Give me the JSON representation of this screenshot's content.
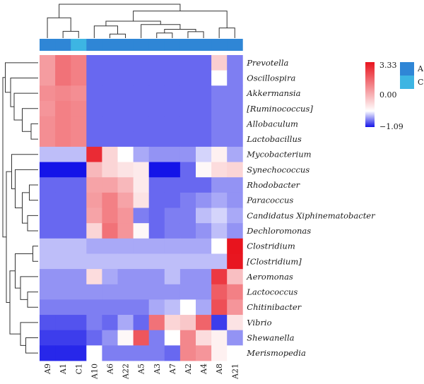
{
  "chart_data": {
    "type": "heatmap",
    "title": "",
    "columns": [
      "A9",
      "A1",
      "C1",
      "A10",
      "A6",
      "A22",
      "A5",
      "A3",
      "A7",
      "A2",
      "A4",
      "A8",
      "A21"
    ],
    "rows": [
      "Prevotella",
      "Oscillospira",
      "Akkermansia",
      "[Ruminococcus]",
      "Allobaculum",
      "Lactobacillus",
      "Mycobacterium",
      "Synechococcus",
      "Rhodobacter",
      "Paracoccus",
      "Candidatus Xiphinematobacter",
      "Dechloromonas",
      "Clostridium",
      "[Clostridium]",
      "Aeromonas",
      "Lactococcus",
      "Chitinibacter",
      "Vibrio",
      "Shewanella",
      "Merismopedia"
    ],
    "groups": [
      "A",
      "A",
      "C",
      "A",
      "A",
      "A",
      "A",
      "A",
      "A",
      "A",
      "A",
      "A",
      "A"
    ],
    "values": [
      [
        1.4,
        2.0,
        1.8,
        -0.7,
        -0.7,
        -0.7,
        -0.7,
        -0.7,
        -0.7,
        -0.7,
        -0.7,
        0.7,
        -0.6
      ],
      [
        1.4,
        2.0,
        1.8,
        -0.7,
        -0.7,
        -0.7,
        -0.7,
        -0.7,
        -0.7,
        -0.7,
        -0.7,
        0.0,
        -0.6
      ],
      [
        1.6,
        1.7,
        1.6,
        -0.7,
        -0.7,
        -0.7,
        -0.7,
        -0.7,
        -0.7,
        -0.7,
        -0.7,
        -0.6,
        -0.6
      ],
      [
        1.5,
        1.8,
        1.7,
        -0.7,
        -0.7,
        -0.7,
        -0.7,
        -0.7,
        -0.7,
        -0.7,
        -0.7,
        -0.6,
        -0.6
      ],
      [
        1.6,
        1.8,
        1.7,
        -0.7,
        -0.7,
        -0.7,
        -0.7,
        -0.7,
        -0.7,
        -0.7,
        -0.7,
        -0.6,
        -0.6
      ],
      [
        1.6,
        1.8,
        1.7,
        -0.7,
        -0.7,
        -0.7,
        -0.7,
        -0.7,
        -0.7,
        -0.7,
        -0.7,
        -0.6,
        -0.6
      ],
      [
        -0.3,
        -0.3,
        -0.3,
        3.0,
        0.6,
        0.0,
        -0.4,
        -0.5,
        -0.5,
        -0.5,
        -0.2,
        0.2,
        -0.4
      ],
      [
        -1.09,
        -1.09,
        -1.09,
        1.0,
        0.6,
        0.4,
        0.3,
        -1.09,
        -1.09,
        -0.7,
        0.1,
        0.5,
        0.6
      ],
      [
        -0.7,
        -0.7,
        -0.7,
        1.3,
        1.3,
        1.0,
        0.3,
        -0.7,
        -0.7,
        -0.7,
        -0.7,
        -0.5,
        -0.5
      ],
      [
        -0.7,
        -0.7,
        -0.7,
        1.4,
        1.8,
        1.3,
        0.4,
        -0.7,
        -0.7,
        -0.6,
        -0.5,
        -0.4,
        -0.5
      ],
      [
        -0.7,
        -0.7,
        -0.7,
        1.3,
        1.8,
        1.5,
        -0.6,
        -0.7,
        -0.6,
        -0.6,
        -0.3,
        -0.2,
        -0.4
      ],
      [
        -0.7,
        -0.7,
        -0.7,
        0.6,
        2.0,
        1.5,
        0.1,
        -0.7,
        -0.6,
        -0.6,
        -0.5,
        -0.3,
        -0.5
      ],
      [
        -0.3,
        -0.3,
        -0.3,
        -0.4,
        -0.4,
        -0.4,
        -0.4,
        -0.4,
        -0.4,
        -0.4,
        -0.4,
        0.0,
        3.33
      ],
      [
        -0.3,
        -0.3,
        -0.3,
        -0.3,
        -0.3,
        -0.3,
        -0.3,
        -0.3,
        -0.3,
        -0.3,
        -0.3,
        -0.3,
        3.3
      ],
      [
        -0.5,
        -0.5,
        -0.5,
        0.5,
        -0.4,
        -0.5,
        -0.5,
        -0.5,
        -0.3,
        -0.5,
        -0.5,
        2.8,
        0.9
      ],
      [
        -0.5,
        -0.5,
        -0.5,
        -0.5,
        -0.5,
        -0.5,
        -0.5,
        -0.5,
        -0.5,
        -0.5,
        -0.5,
        2.3,
        1.8
      ],
      [
        -0.6,
        -0.6,
        -0.6,
        -0.6,
        -0.6,
        -0.6,
        -0.6,
        -0.4,
        -0.3,
        0.0,
        -0.4,
        2.5,
        1.5
      ],
      [
        -0.8,
        -0.8,
        -0.8,
        -0.6,
        -0.7,
        -0.4,
        -0.7,
        2.0,
        0.6,
        0.8,
        2.2,
        -0.9,
        0.4
      ],
      [
        -0.9,
        -0.9,
        -0.9,
        -0.7,
        -0.5,
        0.1,
        2.4,
        -0.6,
        0.0,
        1.7,
        0.5,
        0.2,
        -0.5
      ],
      [
        -1.0,
        -1.0,
        -1.0,
        0.0,
        -0.6,
        -0.6,
        -0.6,
        -0.6,
        -0.7,
        1.7,
        1.5,
        0.2,
        0.0
      ]
    ],
    "color_scale": {
      "min": -1.09,
      "mid": 0.0,
      "max": 3.33,
      "min_color": "#1414e8",
      "mid_color": "#ffffff",
      "max_color": "#e8141e"
    },
    "scale_labels": [
      "3.33",
      "0.00",
      "−1.09"
    ],
    "group_legend": [
      {
        "label": "A",
        "color": "#2f86d6"
      },
      {
        "label": "C",
        "color": "#3db5e3"
      }
    ]
  }
}
